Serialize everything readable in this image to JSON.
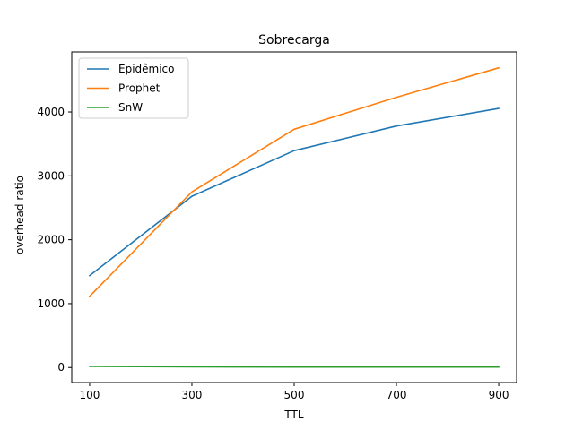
{
  "chart_data": {
    "type": "line",
    "title": "Sobrecarga",
    "xlabel": "TTL",
    "ylabel": "overhead ratio",
    "x": [
      100,
      300,
      500,
      700,
      900
    ],
    "xticks": [
      100,
      300,
      500,
      700,
      900
    ],
    "yticks": [
      0,
      1000,
      2000,
      3000,
      4000
    ],
    "xlim": [
      65,
      935
    ],
    "ylim": [
      -235,
      4940
    ],
    "grid": false,
    "legend_position": "top-left",
    "series": [
      {
        "name": "Epidêmico",
        "color": "#1f77b4",
        "values": [
          1440,
          2680,
          3395,
          3780,
          4055
        ]
      },
      {
        "name": "Prophet",
        "color": "#ff7f0e",
        "values": [
          1115,
          2750,
          3730,
          4230,
          4690
        ]
      },
      {
        "name": "SnW",
        "color": "#2ca02c",
        "values": [
          18,
          10,
          8,
          8,
          7
        ]
      }
    ]
  }
}
